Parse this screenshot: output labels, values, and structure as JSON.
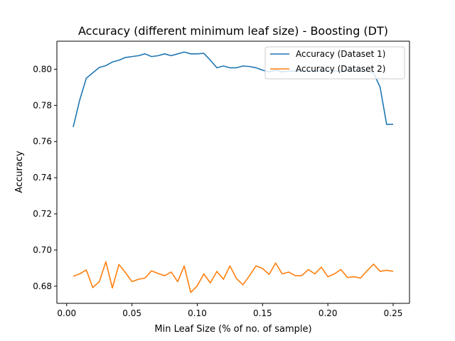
{
  "chart_data": {
    "type": "line",
    "title": "Accuracy (different minimum leaf size) - Boosting (DT)",
    "xlabel": "Min Leaf Size (% of no. of sample)",
    "ylabel": "Accuracy",
    "xlim": [
      -0.0075,
      0.2625
    ],
    "ylim": [
      0.6705,
      0.8155
    ],
    "xticks": [
      0.0,
      0.05,
      0.1,
      0.15,
      0.2,
      0.25
    ],
    "xtick_labels": [
      "0.00",
      "0.05",
      "0.10",
      "0.15",
      "0.20",
      "0.25"
    ],
    "yticks": [
      0.68,
      0.7,
      0.72,
      0.74,
      0.76,
      0.78,
      0.8
    ],
    "ytick_labels": [
      "0.68",
      "0.70",
      "0.72",
      "0.74",
      "0.76",
      "0.78",
      "0.80"
    ],
    "grid": false,
    "legend": "top-right",
    "x": [
      0.005,
      0.01,
      0.015,
      0.02,
      0.025,
      0.03,
      0.035,
      0.04,
      0.045,
      0.05,
      0.055,
      0.06,
      0.065,
      0.07,
      0.075,
      0.08,
      0.085,
      0.09,
      0.095,
      0.1,
      0.105,
      0.11,
      0.115,
      0.12,
      0.125,
      0.13,
      0.135,
      0.14,
      0.145,
      0.15,
      0.155,
      0.16,
      0.165,
      0.17,
      0.175,
      0.18,
      0.185,
      0.19,
      0.195,
      0.2,
      0.205,
      0.21,
      0.215,
      0.22,
      0.225,
      0.23,
      0.235,
      0.24,
      0.245,
      0.25
    ],
    "series": [
      {
        "name": "Accuracy (Dataset 1)",
        "color": "#1f77b4",
        "values": [
          0.768,
          0.783,
          0.795,
          0.798,
          0.801,
          0.802,
          0.804,
          0.805,
          0.8065,
          0.807,
          0.8075,
          0.8085,
          0.807,
          0.8075,
          0.8085,
          0.8075,
          0.8085,
          0.8095,
          0.8085,
          0.8085,
          0.8088,
          0.805,
          0.8008,
          0.8018,
          0.8008,
          0.8008,
          0.8018,
          0.8015,
          0.8008,
          0.7995,
          0.7985,
          0.7995,
          0.7985,
          0.799,
          0.799,
          0.799,
          0.799,
          0.799,
          0.799,
          0.799,
          0.799,
          0.799,
          0.799,
          0.799,
          0.799,
          0.799,
          0.798,
          0.79,
          0.7695,
          0.7695
        ]
      },
      {
        "name": "Accuracy (Dataset 2)",
        "color": "#ff7f0e",
        "values": [
          0.6855,
          0.6868,
          0.689,
          0.6792,
          0.6825,
          0.6935,
          0.679,
          0.692,
          0.6875,
          0.6825,
          0.6838,
          0.6845,
          0.6885,
          0.687,
          0.6858,
          0.6878,
          0.6825,
          0.6912,
          0.6765,
          0.6802,
          0.6868,
          0.6818,
          0.6882,
          0.6838,
          0.6912,
          0.6842,
          0.6808,
          0.6858,
          0.6912,
          0.6898,
          0.6865,
          0.6928,
          0.6868,
          0.6878,
          0.6858,
          0.6858,
          0.6892,
          0.6868,
          0.6905,
          0.6852,
          0.6868,
          0.6892,
          0.6848,
          0.6852,
          0.6845,
          0.6885,
          0.6922,
          0.6882,
          0.6888,
          0.6882
        ]
      }
    ]
  }
}
